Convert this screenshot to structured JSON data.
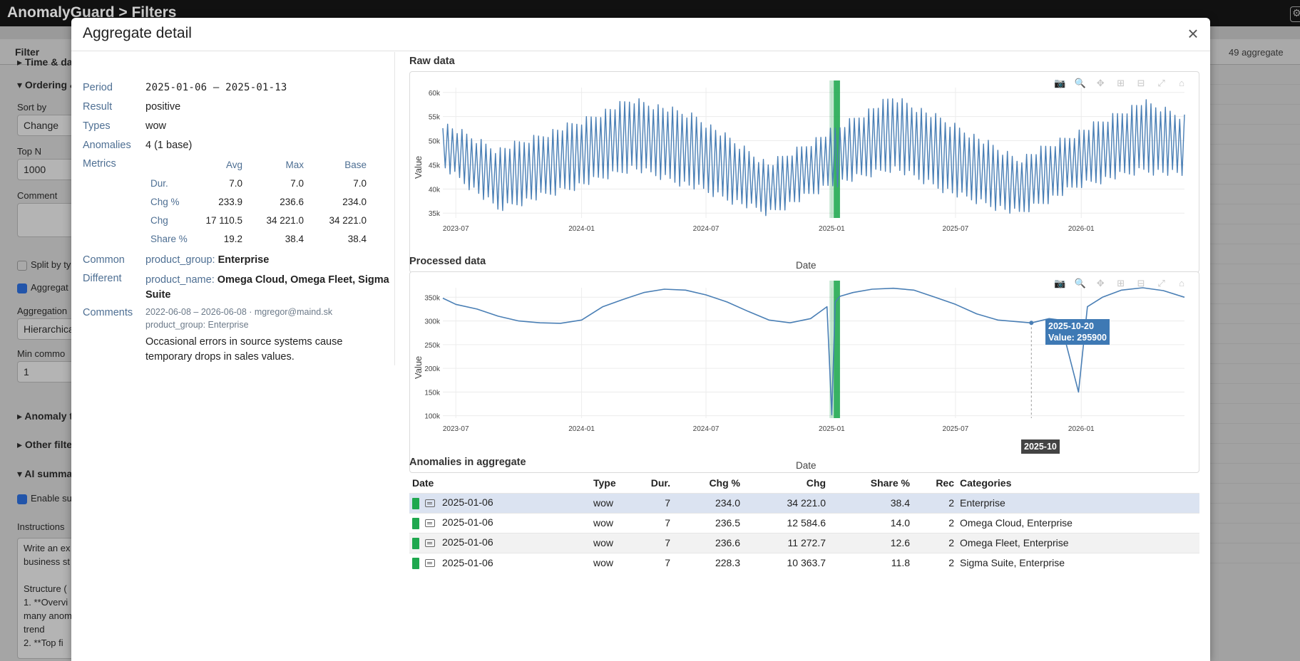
{
  "app": {
    "title": "AnomalyGuard > Filters"
  },
  "background": {
    "filter_label": "Filter",
    "aggregate_count": "49 aggregate",
    "sidebar": {
      "time_section": "▸ Time & da",
      "ordering_section": "▾ Ordering &",
      "sort_by_label": "Sort by",
      "sort_by_value": "Change",
      "top_n_label": "Top N",
      "top_n_value": "1000",
      "comment_label": "Comment",
      "split_label": "Split by ty",
      "aggregate_label": "Aggregat",
      "aggregation_label": "Aggregation",
      "aggregation_value": "Hierarchica",
      "min_common_label": "Min commo",
      "min_common_value": "1",
      "anomaly_section": "▸ Anomaly t",
      "other_section": "▸ Other filte",
      "ai_section": "▾ AI summa",
      "enable_label": "Enable su",
      "instructions_label": "Instructions",
      "instructions_lines": [
        "Write an ex",
        "business st",
        "",
        "Structure (",
        "1. **Overvi",
        "many anom",
        "trend",
        "2. **Top fi"
      ]
    }
  },
  "modal": {
    "title": "Aggregate detail",
    "details": {
      "period_label": "Period",
      "period_value": "2025-01-06 – 2025-01-13",
      "result_label": "Result",
      "result_value": "positive",
      "types_label": "Types",
      "types_value": "wow",
      "anomalies_label": "Anomalies",
      "anomalies_value": "4 (1 base)",
      "metrics_label": "Metrics",
      "metrics_headers": [
        "Avg",
        "Max",
        "Base"
      ],
      "metrics_rows": [
        {
          "name": "Dur.",
          "avg": "7.0",
          "max": "7.0",
          "base": "7.0"
        },
        {
          "name": "Chg %",
          "avg": "233.9",
          "max": "236.6",
          "base": "234.0"
        },
        {
          "name": "Chg",
          "avg": "17 110.5",
          "max": "34 221.0",
          "base": "34 221.0"
        },
        {
          "name": "Share %",
          "avg": "19.2",
          "max": "38.4",
          "base": "38.4"
        }
      ],
      "common_label": "Common",
      "common_key": "product_group:",
      "common_value": "Enterprise",
      "different_label": "Different",
      "different_key": "product_name:",
      "different_value_1": "Omega Cloud, Omega Fleet, Sigma",
      "different_value_2": "Suite",
      "comments_label": "Comments",
      "comment_meta": "2022-06-08 – 2026-06-08 · mgregor@maind.sk",
      "comment_scope": "product_group: Enterprise",
      "comment_text_1": "Occasional errors in source systems cause",
      "comment_text_2": "temporary drops in sales values."
    },
    "raw_section_title": "Raw data",
    "processed_section_title": "Processed data",
    "anomalies_section_title": "Anomalies in aggregate",
    "modebar_icons": [
      "camera-icon",
      "zoom-icon",
      "pan-icon",
      "zoom-in-icon",
      "zoom-out-icon",
      "autoscale-icon",
      "home-icon"
    ],
    "hover": {
      "label_date": "2025-10-20",
      "label_value": "Value: 295900",
      "axis_label": "2025-10"
    },
    "table": {
      "headers": {
        "date": "Date",
        "type": "Type",
        "dur": "Dur.",
        "chg_pct": "Chg %",
        "chg": "Chg",
        "share": "Share %",
        "rec": "Rec",
        "categories": "Categories"
      },
      "rows": [
        {
          "date": "2025-01-06",
          "type": "wow",
          "dur": "7",
          "chg_pct": "234.0",
          "chg": "34 221.0",
          "share": "38.4",
          "rec": "2",
          "categories": "Enterprise"
        },
        {
          "date": "2025-01-06",
          "type": "wow",
          "dur": "7",
          "chg_pct": "236.5",
          "chg": "12 584.6",
          "share": "14.0",
          "rec": "2",
          "categories": "Omega Cloud, Enterprise"
        },
        {
          "date": "2025-01-06",
          "type": "wow",
          "dur": "7",
          "chg_pct": "236.6",
          "chg": "11 272.7",
          "share": "12.6",
          "rec": "2",
          "categories": "Omega Fleet, Enterprise"
        },
        {
          "date": "2025-01-06",
          "type": "wow",
          "dur": "7",
          "chg_pct": "228.3",
          "chg": "10 363.7",
          "share": "11.8",
          "rec": "2",
          "categories": "Sigma Suite, Enterprise"
        }
      ]
    },
    "colors": {
      "line": "#4a7fb5",
      "highlight": "#1fa84f",
      "selected_row": "#dbe3f1",
      "accent_label": "#4e6f93"
    }
  },
  "chart_data": [
    {
      "type": "line",
      "title": "Raw data",
      "xlabel": "Date",
      "ylabel": "Value",
      "x_range": [
        "2023-06-12",
        "2026-06-01"
      ],
      "ylim": [
        34000,
        61000
      ],
      "x_ticks": [
        "2023-07",
        "2024-01",
        "2024-07",
        "2025-01",
        "2025-07",
        "2026-01"
      ],
      "y_ticks": [
        "35k",
        "40k",
        "45k",
        "50k",
        "55k",
        "60k"
      ],
      "y_tick_values": [
        35000,
        40000,
        45000,
        50000,
        55000,
        60000
      ],
      "highlight": [
        "2025-01-06",
        "2025-01-13"
      ],
      "series_description": "daily sales, weekly oscillation, yearly seasonality",
      "envelope": [
        {
          "x": "2023-06-12",
          "high": 53500,
          "low": 45000
        },
        {
          "x": "2023-09-01",
          "high": 48000,
          "low": 36000
        },
        {
          "x": "2024-01-01",
          "high": 54000,
          "low": 41000
        },
        {
          "x": "2024-03-15",
          "high": 58500,
          "low": 44500
        },
        {
          "x": "2024-06-15",
          "high": 55000,
          "low": 40500
        },
        {
          "x": "2024-10-01",
          "high": 45000,
          "low": 35000
        },
        {
          "x": "2025-01-01",
          "high": 52000,
          "low": 41000
        },
        {
          "x": "2025-04-01",
          "high": 59000,
          "low": 44500
        },
        {
          "x": "2025-07-01",
          "high": 53000,
          "low": 39000
        },
        {
          "x": "2025-10-01",
          "high": 46000,
          "low": 35000
        },
        {
          "x": "2026-01-01",
          "high": 52000,
          "low": 41000
        },
        {
          "x": "2026-04-01",
          "high": 58000,
          "low": 44000
        },
        {
          "x": "2026-06-01",
          "high": 55000,
          "low": 43000
        }
      ]
    },
    {
      "type": "line",
      "title": "Processed data",
      "xlabel": "Date",
      "ylabel": "Value",
      "x_range": [
        "2023-06-12",
        "2026-06-01"
      ],
      "ylim": [
        95000,
        370000
      ],
      "x_ticks": [
        "2023-07",
        "2024-01",
        "2024-07",
        "2025-01",
        "2025-07",
        "2026-01"
      ],
      "y_ticks": [
        "100k",
        "150k",
        "200k",
        "250k",
        "300k",
        "350k"
      ],
      "y_tick_values": [
        100000,
        150000,
        200000,
        250000,
        300000,
        350000
      ],
      "highlight": [
        "2025-01-06",
        "2025-01-13"
      ],
      "points": [
        {
          "x": "2023-06-12",
          "y": 348000
        },
        {
          "x": "2023-07-01",
          "y": 335000
        },
        {
          "x": "2023-08-01",
          "y": 325000
        },
        {
          "x": "2023-09-01",
          "y": 310000
        },
        {
          "x": "2023-10-01",
          "y": 300000
        },
        {
          "x": "2023-11-01",
          "y": 296000
        },
        {
          "x": "2023-12-01",
          "y": 295000
        },
        {
          "x": "2024-01-01",
          "y": 302000
        },
        {
          "x": "2024-02-01",
          "y": 330000
        },
        {
          "x": "2024-03-01",
          "y": 345000
        },
        {
          "x": "2024-04-01",
          "y": 360000
        },
        {
          "x": "2024-05-01",
          "y": 367000
        },
        {
          "x": "2024-06-01",
          "y": 365000
        },
        {
          "x": "2024-07-01",
          "y": 355000
        },
        {
          "x": "2024-08-01",
          "y": 340000
        },
        {
          "x": "2024-09-01",
          "y": 320000
        },
        {
          "x": "2024-10-01",
          "y": 302000
        },
        {
          "x": "2024-11-01",
          "y": 296000
        },
        {
          "x": "2024-12-01",
          "y": 305000
        },
        {
          "x": "2024-12-25",
          "y": 330000
        },
        {
          "x": "2025-01-01",
          "y": 102000
        },
        {
          "x": "2025-01-06",
          "y": 340000
        },
        {
          "x": "2025-01-13",
          "y": 352000
        },
        {
          "x": "2025-02-01",
          "y": 360000
        },
        {
          "x": "2025-03-01",
          "y": 367000
        },
        {
          "x": "2025-04-01",
          "y": 369000
        },
        {
          "x": "2025-05-01",
          "y": 365000
        },
        {
          "x": "2025-06-01",
          "y": 350000
        },
        {
          "x": "2025-07-01",
          "y": 335000
        },
        {
          "x": "2025-08-01",
          "y": 315000
        },
        {
          "x": "2025-09-01",
          "y": 302000
        },
        {
          "x": "2025-10-20",
          "y": 295900
        },
        {
          "x": "2025-11-15",
          "y": 305000
        },
        {
          "x": "2025-12-01",
          "y": 302000
        },
        {
          "x": "2025-12-28",
          "y": 150000
        },
        {
          "x": "2026-01-10",
          "y": 330000
        },
        {
          "x": "2026-02-01",
          "y": 350000
        },
        {
          "x": "2026-03-01",
          "y": 365000
        },
        {
          "x": "2026-04-01",
          "y": 370000
        },
        {
          "x": "2026-05-01",
          "y": 364000
        },
        {
          "x": "2026-06-01",
          "y": 350000
        }
      ]
    }
  ]
}
